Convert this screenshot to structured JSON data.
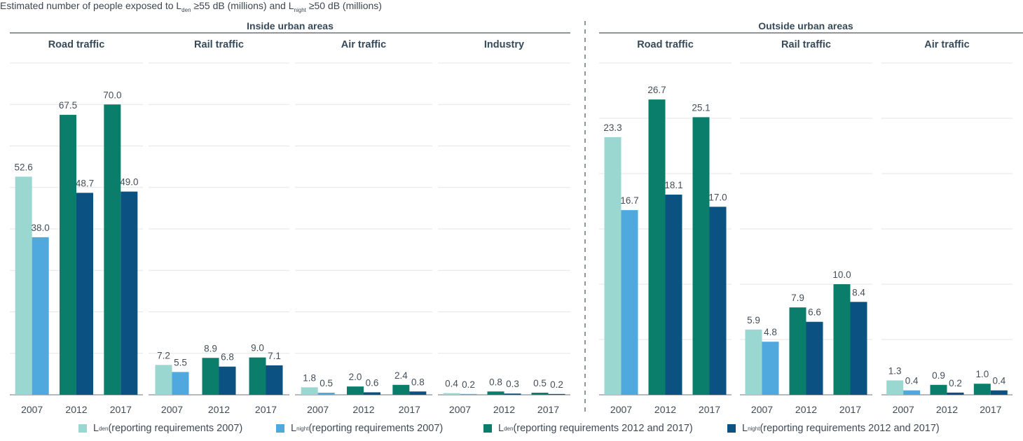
{
  "title": {
    "prefix": "Estimated number of people exposed to L",
    "sub1": "den",
    "mid": " ≥55 dB (millions) and L",
    "sub2": "night",
    "suffix": " ≥50 dB (millions)"
  },
  "chart_data": {
    "type": "bar",
    "title": "Estimated number of people exposed to Lden ≥55 dB (millions) and Lnight ≥50 dB (millions)",
    "xlabel": "",
    "ylabel": "",
    "grid": true,
    "legend_position": "bottom",
    "categories": [
      "2007",
      "2012",
      "2017"
    ],
    "series_names": [
      "Lden (reporting requirements 2007)",
      "Lnight (reporting requirements 2007)",
      "Lden (reporting requirements 2012 and 2017)",
      "Lnight (reporting requirements 2012 and 2017)"
    ],
    "colors": {
      "lden_2007": "#9ad7d1",
      "lnight_2007": "#4fa8de",
      "lden_2012_2017": "#0a7d6b",
      "lnight_2012_2017": "#0b5283"
    },
    "groups": [
      {
        "label": "Inside urban areas",
        "ylim": [
          0,
          80
        ],
        "grid_step": 10,
        "panels": [
          {
            "label": "Road traffic",
            "data": [
              {
                "year": "2007",
                "lden": 52.6,
                "lnight": 38.0
              },
              {
                "year": "2012",
                "lden": 67.5,
                "lnight": 48.7
              },
              {
                "year": "2017",
                "lden": 70.0,
                "lnight": 49.0
              }
            ]
          },
          {
            "label": "Rail traffic",
            "data": [
              {
                "year": "2007",
                "lden": 7.2,
                "lnight": 5.5
              },
              {
                "year": "2012",
                "lden": 8.9,
                "lnight": 6.8
              },
              {
                "year": "2017",
                "lden": 9.0,
                "lnight": 7.1
              }
            ]
          },
          {
            "label": "Air traffic",
            "data": [
              {
                "year": "2007",
                "lden": 1.8,
                "lnight": 0.5
              },
              {
                "year": "2012",
                "lden": 2.0,
                "lnight": 0.6
              },
              {
                "year": "2017",
                "lden": 2.4,
                "lnight": 0.8
              }
            ]
          },
          {
            "label": "Industry",
            "data": [
              {
                "year": "2007",
                "lden": 0.4,
                "lnight": 0.2
              },
              {
                "year": "2012",
                "lden": 0.8,
                "lnight": 0.3
              },
              {
                "year": "2017",
                "lden": 0.5,
                "lnight": 0.2
              }
            ]
          }
        ]
      },
      {
        "label": "Outside urban areas",
        "ylim": [
          0,
          30
        ],
        "grid_step": 5,
        "panels": [
          {
            "label": "Road traffic",
            "data": [
              {
                "year": "2007",
                "lden": 23.3,
                "lnight": 16.7
              },
              {
                "year": "2012",
                "lden": 26.7,
                "lnight": 18.1
              },
              {
                "year": "2017",
                "lden": 25.1,
                "lnight": 17.0
              }
            ]
          },
          {
            "label": "Rail traffic",
            "data": [
              {
                "year": "2007",
                "lden": 5.9,
                "lnight": 4.8
              },
              {
                "year": "2012",
                "lden": 7.9,
                "lnight": 6.6
              },
              {
                "year": "2017",
                "lden": 10.0,
                "lnight": 8.4
              }
            ]
          },
          {
            "label": "Air traffic",
            "data": [
              {
                "year": "2007",
                "lden": 1.3,
                "lnight": 0.4
              },
              {
                "year": "2012",
                "lden": 0.9,
                "lnight": 0.2
              },
              {
                "year": "2017",
                "lden": 1.0,
                "lnight": 0.4
              }
            ]
          }
        ]
      }
    ]
  },
  "legend": [
    {
      "main": "L",
      "sub": "den",
      "rest": " (reporting requirements 2007)",
      "color": "#9ad7d1"
    },
    {
      "main": "L",
      "sub": "night",
      "rest": " (reporting requirements 2007)",
      "color": "#4fa8de"
    },
    {
      "main": "L",
      "sub": "den",
      "rest": " (reporting requirements 2012 and 2017)",
      "color": "#0a7d6b"
    },
    {
      "main": "L",
      "sub": "night",
      "rest": " (reporting requirements 2012 and 2017)",
      "color": "#0b5283"
    }
  ]
}
